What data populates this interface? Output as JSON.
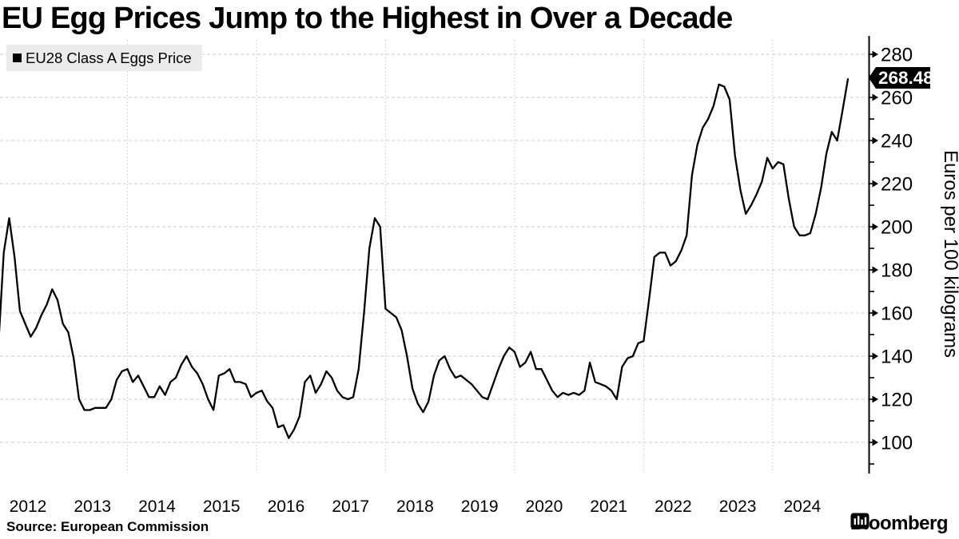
{
  "title": "EU Egg Prices Jump to the Highest in Over a Decade",
  "legend": {
    "label": "EU28 Class A Eggs Price",
    "swatch_color": "#000000",
    "bg_color": "#ececec"
  },
  "value_label": {
    "text": "268.48",
    "bg": "#000000",
    "fg": "#ffffff"
  },
  "y_axis": {
    "title": "Euros per 100 kilograms",
    "major_ticks": [
      100,
      120,
      140,
      160,
      180,
      200,
      220,
      240,
      260,
      280
    ],
    "minor_ticks": [
      90,
      110,
      130,
      150,
      170,
      190,
      210,
      230,
      250,
      270
    ]
  },
  "x_axis": {
    "tick_labels": [
      "2012",
      "2013",
      "2014",
      "2015",
      "2016",
      "2017",
      "2018",
      "2019",
      "2020",
      "2021",
      "2022",
      "2023",
      "2024"
    ]
  },
  "source": "Source: European Commission",
  "branding": {
    "name": "Bloomberg",
    "icon": "bloomberg-terminal-icon"
  },
  "chart_data": {
    "type": "line",
    "title": "EU Egg Prices Jump to the Highest in Over a Decade",
    "ylabel": "Euros per 100 kilograms",
    "ylim": [
      90,
      285
    ],
    "grid": true,
    "legend_position": "top-left",
    "vertical_gridline_years": [
      2014,
      2016,
      2018,
      2020,
      2022,
      2024
    ],
    "last_value": 268.48,
    "series": [
      {
        "name": "EU28 Class A Eggs Price",
        "color": "#000000",
        "frequency": "monthly",
        "start": "2012-01",
        "end": "2025-03",
        "values": [
          145,
          188,
          204,
          186,
          161,
          155,
          149,
          153,
          159,
          164,
          171,
          166,
          155,
          151,
          139,
          120,
          115,
          115,
          116,
          116,
          116,
          120,
          129,
          133,
          134,
          128,
          131,
          126,
          121,
          121,
          126,
          122,
          128,
          130,
          136,
          140,
          135,
          132,
          127,
          120,
          115,
          131,
          132,
          134,
          128,
          128,
          127,
          121,
          123,
          124,
          119,
          116,
          107,
          108,
          102,
          106,
          112,
          128,
          131,
          123,
          127,
          133,
          130,
          124,
          121,
          120,
          121,
          134,
          160,
          190,
          204,
          200,
          162,
          160,
          158,
          152,
          140,
          125,
          118,
          114,
          119,
          131,
          138,
          140,
          134,
          130,
          131,
          129,
          127,
          124,
          121,
          120,
          127,
          134,
          140,
          144,
          142,
          135,
          137,
          142,
          134,
          134,
          129,
          124,
          121,
          123,
          122,
          123,
          122,
          124,
          137,
          128,
          127,
          126,
          124,
          120,
          135,
          139,
          140,
          146,
          147,
          166,
          186,
          188,
          188,
          182,
          184,
          189,
          196,
          224,
          238,
          246,
          250,
          256,
          266,
          265,
          259,
          233,
          217,
          206,
          210,
          215,
          221,
          232,
          227,
          230,
          229,
          213,
          200,
          196,
          196,
          197,
          206,
          218,
          234,
          244,
          240,
          254,
          268.48
        ]
      }
    ]
  }
}
